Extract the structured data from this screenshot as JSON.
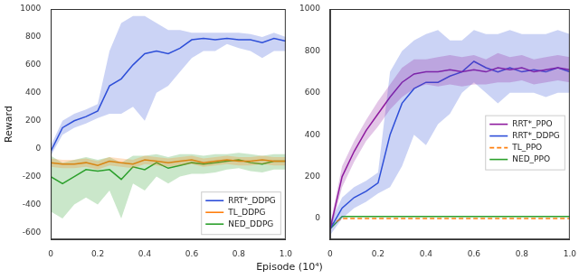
{
  "chart_data": [
    {
      "type": "line",
      "y_label": "Reward",
      "x": [
        0,
        0.05,
        0.1,
        0.15,
        0.2,
        0.25,
        0.3,
        0.35,
        0.4,
        0.45,
        0.5,
        0.55,
        0.6,
        0.65,
        0.7,
        0.75,
        0.8,
        0.85,
        0.9,
        0.95,
        1.0
      ],
      "xlim": [
        0,
        1.0
      ],
      "xticks": [
        0,
        0.2,
        0.4,
        0.6,
        0.8,
        {
          "value": 1.0,
          "label": "1.0"
        }
      ],
      "ylim": [
        -650,
        1000
      ],
      "yticks": [
        -600,
        -400,
        -200,
        0,
        200,
        400,
        600,
        800,
        1000
      ],
      "grid": false,
      "legend": "lower right",
      "series": [
        {
          "name": "RRT*_DDPG",
          "color": "#2e4fd9",
          "line_style": "solid",
          "values": [
            -20,
            150,
            200,
            230,
            270,
            450,
            500,
            600,
            680,
            700,
            680,
            720,
            780,
            790,
            780,
            790,
            780,
            780,
            760,
            790,
            770
          ],
          "lower": [
            -50,
            100,
            150,
            180,
            220,
            250,
            250,
            300,
            200,
            400,
            450,
            550,
            650,
            700,
            700,
            750,
            720,
            700,
            650,
            700,
            700
          ],
          "upper": [
            20,
            200,
            250,
            280,
            320,
            700,
            900,
            950,
            950,
            900,
            850,
            850,
            830,
            830,
            830,
            830,
            830,
            820,
            800,
            830,
            800
          ]
        },
        {
          "name": "TL_DDPG",
          "color": "#ff7f0e",
          "line_style": "solid",
          "values": [
            -100,
            -110,
            -110,
            -100,
            -120,
            -90,
            -100,
            -110,
            -80,
            -90,
            -100,
            -90,
            -80,
            -100,
            -90,
            -80,
            -90,
            -90,
            -80,
            -90,
            -90
          ],
          "lower": [
            -130,
            -140,
            -140,
            -130,
            -150,
            -120,
            -130,
            -140,
            -110,
            -120,
            -130,
            -120,
            -110,
            -130,
            -120,
            -110,
            -120,
            -120,
            -110,
            -120,
            -120
          ],
          "upper": [
            -70,
            -80,
            -80,
            -70,
            -90,
            -60,
            -70,
            -80,
            -50,
            -60,
            -70,
            -60,
            -50,
            -70,
            -60,
            -50,
            -60,
            -60,
            -50,
            -60,
            -60
          ]
        },
        {
          "name": "NED_DDPG",
          "color": "#2ca02c",
          "line_style": "solid",
          "values": [
            -200,
            -250,
            -200,
            -150,
            -160,
            -150,
            -220,
            -130,
            -150,
            -100,
            -140,
            -120,
            -100,
            -110,
            -100,
            -90,
            -80,
            -100,
            -110,
            -90,
            -90
          ],
          "lower": [
            -450,
            -500,
            -400,
            -350,
            -400,
            -300,
            -500,
            -250,
            -300,
            -200,
            -250,
            -200,
            -180,
            -180,
            -170,
            -150,
            -140,
            -160,
            -170,
            -150,
            -150
          ],
          "upper": [
            -50,
            -100,
            -80,
            -60,
            -80,
            -60,
            -100,
            -50,
            -50,
            -40,
            -60,
            -40,
            -40,
            -50,
            -40,
            -40,
            -30,
            -40,
            -50,
            -40,
            -40
          ]
        }
      ]
    },
    {
      "type": "line",
      "x": [
        0,
        0.05,
        0.1,
        0.15,
        0.2,
        0.25,
        0.3,
        0.35,
        0.4,
        0.45,
        0.5,
        0.55,
        0.6,
        0.65,
        0.7,
        0.75,
        0.8,
        0.85,
        0.9,
        0.95,
        1.0
      ],
      "xlim": [
        0,
        1.0
      ],
      "xticks": [
        0,
        0.2,
        0.4,
        0.6,
        0.8,
        {
          "value": 1.0,
          "label": "1.0"
        }
      ],
      "ylim": [
        -100,
        1000
      ],
      "yticks": [
        0,
        200,
        400,
        600,
        800,
        1000
      ],
      "grid": false,
      "legend": "center right",
      "series": [
        {
          "name": "RRT*_PPO",
          "color": "#8e1a9e",
          "line_style": "solid",
          "values": [
            -50,
            200,
            320,
            420,
            500,
            580,
            650,
            690,
            700,
            700,
            710,
            700,
            710,
            700,
            720,
            710,
            720,
            700,
            710,
            720,
            710
          ],
          "lower": [
            -70,
            150,
            270,
            370,
            440,
            520,
            580,
            620,
            640,
            630,
            640,
            630,
            640,
            640,
            650,
            650,
            660,
            640,
            650,
            660,
            650
          ],
          "upper": [
            -30,
            250,
            370,
            470,
            560,
            640,
            720,
            760,
            760,
            770,
            780,
            770,
            780,
            760,
            790,
            770,
            780,
            760,
            770,
            780,
            770
          ]
        },
        {
          "name": "RRT*_DDPG",
          "color": "#2e4fd9",
          "line_style": "solid",
          "values": [
            -50,
            50,
            100,
            130,
            170,
            400,
            550,
            620,
            650,
            650,
            680,
            700,
            750,
            720,
            700,
            720,
            700,
            710,
            700,
            720,
            700
          ],
          "lower": [
            -80,
            0,
            50,
            80,
            120,
            150,
            250,
            400,
            350,
            450,
            500,
            600,
            650,
            600,
            550,
            600,
            600,
            600,
            580,
            600,
            600
          ],
          "upper": [
            -20,
            100,
            150,
            180,
            220,
            700,
            800,
            850,
            880,
            900,
            850,
            850,
            900,
            880,
            880,
            900,
            880,
            880,
            880,
            900,
            880
          ]
        },
        {
          "name": "TL_PPO",
          "color": "#ff7f0e",
          "line_style": "dashed",
          "values": [
            -30,
            0,
            0,
            0,
            0,
            0,
            0,
            0,
            0,
            0,
            0,
            0,
            0,
            0,
            0,
            0,
            0,
            0,
            0,
            0,
            0
          ]
        },
        {
          "name": "NED_PPO",
          "color": "#2ca02c",
          "line_style": "solid",
          "values": [
            -50,
            10,
            10,
            10,
            10,
            10,
            10,
            10,
            10,
            10,
            10,
            10,
            10,
            10,
            10,
            10,
            10,
            10,
            10,
            10,
            10
          ]
        }
      ]
    }
  ],
  "x_label": "Episode (10⁴)"
}
